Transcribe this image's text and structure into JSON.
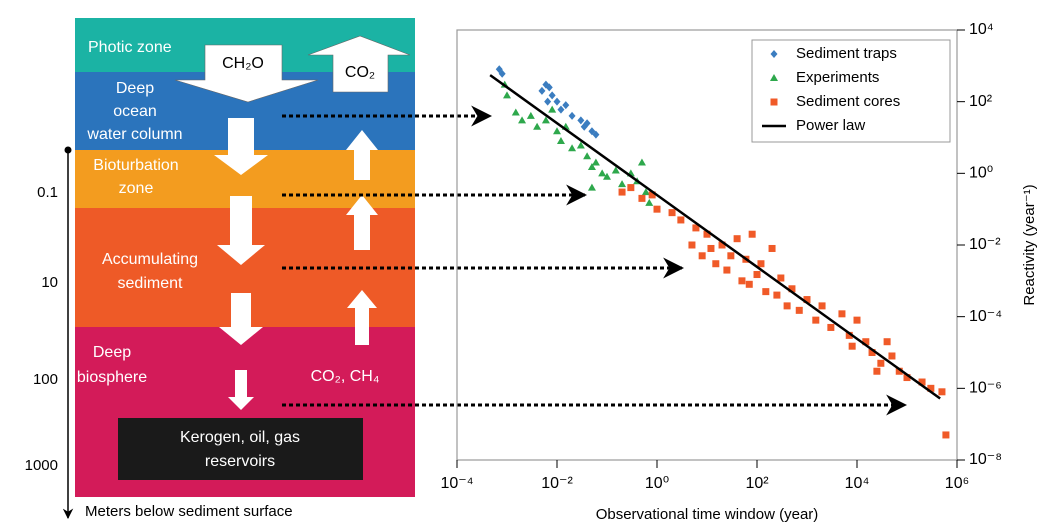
{
  "diagram": {
    "zones": [
      {
        "lines": [
          "Photic zone"
        ]
      },
      {
        "lines": [
          "Deep",
          "ocean",
          "water column"
        ]
      },
      {
        "lines": [
          "Bioturbation",
          "zone"
        ]
      },
      {
        "lines": [
          "Accumulating",
          "sediment"
        ]
      },
      {
        "lines": [
          "Deep",
          "biosphere"
        ]
      }
    ],
    "down_flux": "CH₂O",
    "up_flux": "CO₂",
    "deep_products": "CO₂, CH₄",
    "reservoir": [
      "Kerogen, oil, gas",
      "reservoirs"
    ],
    "depth_axis": {
      "ticks": [
        0.1,
        10,
        100,
        1000
      ],
      "label": "Meters below sediment surface"
    }
  },
  "chart_data": {
    "type": "scatter",
    "x_label": "Observational time window (year)",
    "y_label": "Reactivity (year⁻¹)",
    "log_x": true,
    "log_y": true,
    "legend": "top-right",
    "y_axis_side": "right",
    "xlim": [
      0.0001,
      1000000
    ],
    "ylim": [
      1e-08,
      10000
    ],
    "xticks": [
      {
        "value": 0.0001,
        "label": "10⁻⁴"
      },
      {
        "value": 0.01,
        "label": "10⁻²"
      },
      {
        "value": 1,
        "label": "10⁰"
      },
      {
        "value": 100,
        "label": "10²"
      },
      {
        "value": 10000,
        "label": "10⁴"
      },
      {
        "value": 1000000,
        "label": "10⁶"
      }
    ],
    "yticks": [
      {
        "value": 1e-08,
        "label": "10⁻⁸"
      },
      {
        "value": 1e-06,
        "label": "10⁻⁶"
      },
      {
        "value": 0.0001,
        "label": "10⁻⁴"
      },
      {
        "value": 0.01,
        "label": "10⁻²"
      },
      {
        "value": 1,
        "label": "10⁰"
      },
      {
        "value": 100,
        "label": "10²"
      },
      {
        "value": 10000,
        "label": "10⁴"
      }
    ],
    "series": [
      {
        "name": "Sediment traps",
        "color": "#3b7dc0",
        "marker": "diamond",
        "x": [
          0.0007,
          0.0008,
          0.005,
          0.006,
          0.007,
          0.008,
          0.0065,
          0.012,
          0.015,
          0.02,
          0.03,
          0.035,
          0.05,
          0.06,
          0.04,
          0.01
        ],
        "values": [
          800,
          600,
          200,
          300,
          250,
          150,
          100,
          60,
          80,
          40,
          30,
          20,
          15,
          12,
          25,
          100
        ]
      },
      {
        "name": "Experiments",
        "color": "#2ea84c",
        "marker": "triangle",
        "x": [
          0.0009,
          0.001,
          0.0015,
          0.002,
          0.003,
          0.004,
          0.006,
          0.008,
          0.01,
          0.012,
          0.015,
          0.02,
          0.03,
          0.04,
          0.05,
          0.06,
          0.08,
          0.1,
          0.15,
          0.2,
          0.3,
          0.4,
          0.5,
          0.6,
          0.7,
          0.05
        ],
        "values": [
          300,
          150,
          50,
          30,
          40,
          20,
          30,
          60,
          15,
          8,
          20,
          5,
          6,
          3,
          1.5,
          2,
          1,
          0.8,
          1.2,
          0.5,
          1,
          0.6,
          2,
          0.3,
          0.15,
          0.4
        ]
      },
      {
        "name": "Sediment cores",
        "color": "#f05a28",
        "marker": "square",
        "x": [
          0.2,
          0.3,
          0.5,
          0.8,
          1,
          2,
          3,
          5,
          6,
          8,
          10,
          12,
          15,
          20,
          25,
          30,
          40,
          50,
          60,
          70,
          80,
          100,
          120,
          150,
          200,
          250,
          300,
          400,
          500,
          700,
          1000,
          1500,
          2000,
          3000,
          5000,
          7000,
          10000,
          15000,
          20000,
          30000,
          50000,
          70000,
          100000,
          200000,
          300000,
          500000,
          600000,
          25000,
          40000,
          8000
        ],
        "values": [
          0.3,
          0.4,
          0.2,
          0.25,
          0.1,
          0.08,
          0.05,
          0.01,
          0.03,
          0.005,
          0.02,
          0.008,
          0.003,
          0.01,
          0.002,
          0.005,
          0.015,
          0.001,
          0.004,
          0.0008,
          0.02,
          0.0015,
          0.003,
          0.0005,
          0.008,
          0.0004,
          0.0012,
          0.0002,
          0.0006,
          0.00015,
          0.0003,
          8e-05,
          0.0002,
          5e-05,
          0.00012,
          3e-05,
          8e-05,
          2e-05,
          1e-05,
          5e-06,
          8e-06,
          3e-06,
          2e-06,
          1.5e-06,
          1e-06,
          8e-07,
          5e-08,
          3e-06,
          2e-05,
          1.5e-05
        ]
      },
      {
        "name": "Power law",
        "color": "#000000",
        "marker": "line",
        "x": [
          0.00046,
          460000
        ],
        "values": [
          550,
          5.2e-07
        ]
      }
    ]
  }
}
